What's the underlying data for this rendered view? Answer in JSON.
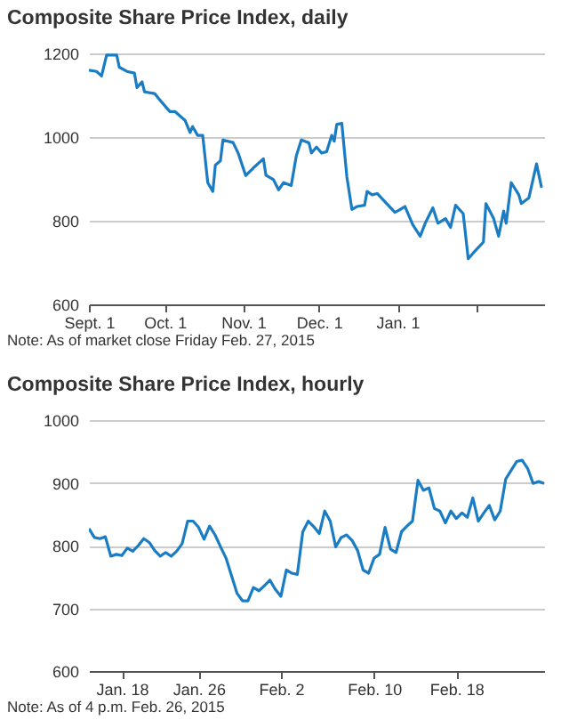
{
  "chart_data": [
    {
      "type": "line",
      "title": "Composite Share Price Index, daily",
      "annotations": [
        "Note: As of market close Friday Feb. 27, 2015"
      ],
      "color": "#1a7dc4",
      "grid": "y",
      "x": [
        "2014-09-01",
        "2014-09-04",
        "2014-09-06",
        "2014-09-08",
        "2014-09-12",
        "2014-09-13",
        "2014-09-16",
        "2014-09-19",
        "2014-09-20",
        "2014-09-22",
        "2014-09-23",
        "2014-09-27",
        "2014-09-29",
        "2014-10-03",
        "2014-10-05",
        "2014-10-09",
        "2014-10-11",
        "2014-10-12",
        "2014-10-14",
        "2014-10-16",
        "2014-10-18",
        "2014-10-20",
        "2014-10-21",
        "2014-10-23",
        "2014-10-24",
        "2014-10-28",
        "2014-10-30",
        "2014-11-02",
        "2014-11-05",
        "2014-11-09",
        "2014-11-10",
        "2014-11-13",
        "2014-11-15",
        "2014-11-17",
        "2014-11-20",
        "2014-11-22",
        "2014-11-24",
        "2014-11-27",
        "2014-11-28",
        "2014-11-30",
        "2014-12-02",
        "2014-12-04",
        "2014-12-06",
        "2014-12-07",
        "2014-12-08",
        "2014-12-10",
        "2014-12-12",
        "2014-12-14",
        "2014-12-16",
        "2014-12-19",
        "2014-12-20",
        "2014-12-22",
        "2014-12-24",
        "2014-12-31",
        "2015-01-01",
        "2015-01-04",
        "2015-01-07",
        "2015-01-10",
        "2015-01-12",
        "2015-01-15",
        "2015-01-17",
        "2015-01-20",
        "2015-01-22",
        "2015-01-24",
        "2015-01-27",
        "2015-01-29",
        "2015-01-31",
        "2015-02-04",
        "2015-02-05",
        "2015-02-08",
        "2015-02-10",
        "2015-02-12",
        "2015-02-13",
        "2015-02-15",
        "2015-02-18",
        "2015-02-19",
        "2015-02-22",
        "2015-02-25",
        "2015-02-27"
      ],
      "values": [
        1160,
        1157,
        1146,
        1196,
        1196,
        1167,
        1157,
        1153,
        1118,
        1132,
        1108,
        1104,
        1089,
        1061,
        1061,
        1040,
        1011,
        1025,
        1004,
        1004,
        891,
        870,
        933,
        943,
        993,
        987,
        962,
        908,
        926,
        948,
        909,
        898,
        874,
        891,
        884,
        955,
        993,
        986,
        962,
        976,
        962,
        965,
        1004,
        990,
        1030,
        1033,
        905,
        827,
        834,
        837,
        870,
        862,
        865,
        820,
        823,
        834,
        791,
        763,
        794,
        831,
        794,
        805,
        784,
        837,
        817,
        709,
        723,
        749,
        841,
        806,
        763,
        823,
        794,
        891,
        862,
        841,
        855,
        936,
        879
      ],
      "xlim": [
        "2014-09-01",
        "2015-02-28"
      ],
      "ylim": [
        600,
        1200
      ],
      "yticks": [
        600,
        800,
        1000,
        1200
      ],
      "xticks": [
        {
          "value": "2014-09-01",
          "label": "Sept. 1"
        },
        {
          "value": "2014-10-01",
          "label": "Oct. 1"
        },
        {
          "value": "2014-11-01",
          "label": "Nov. 1"
        },
        {
          "value": "2014-12-01",
          "label": "Dec. 1"
        },
        {
          "value": "2015-01-01",
          "label": "Jan. 1"
        },
        {
          "value": "2015-02-01",
          "label": null
        }
      ]
    },
    {
      "type": "line",
      "title": "Composite Share Price Index, hourly",
      "annotations": [
        "Note: As of 4 p.m. Feb. 26, 2015"
      ],
      "color": "#1a7dc4",
      "grid": "y",
      "categories": [
        null,
        null,
        null,
        null,
        null,
        null,
        "Jan. 18",
        null,
        null,
        null,
        null,
        null,
        null,
        null,
        null,
        null,
        null,
        null,
        null,
        null,
        "Jan. 26",
        null,
        null,
        null,
        null,
        null,
        null,
        null,
        null,
        null,
        null,
        null,
        null,
        null,
        null,
        "Feb. 2",
        null,
        null,
        null,
        null,
        null,
        null,
        null,
        null,
        null,
        null,
        null,
        null,
        null,
        null,
        null,
        null,
        "Feb. 10",
        null,
        null,
        null,
        null,
        null,
        null,
        null,
        null,
        null,
        null,
        null,
        null,
        null,
        null,
        "Feb. 18",
        null,
        null,
        null,
        null,
        null,
        null,
        null,
        null,
        null,
        null,
        null,
        null,
        null,
        null,
        null,
        null
      ],
      "values": [
        827,
        813,
        811,
        814,
        783,
        786,
        784,
        796,
        791,
        800,
        811,
        805,
        792,
        783,
        789,
        783,
        791,
        803,
        839,
        839,
        829,
        810,
        831,
        817,
        798,
        780,
        752,
        724,
        712,
        712,
        733,
        728,
        736,
        745,
        730,
        719,
        761,
        756,
        754,
        822,
        839,
        830,
        819,
        855,
        839,
        798,
        813,
        817,
        808,
        792,
        761,
        756,
        780,
        786,
        829,
        794,
        789,
        822,
        831,
        839,
        904,
        888,
        892,
        859,
        855,
        836,
        855,
        843,
        852,
        845,
        876,
        839,
        852,
        864,
        841,
        855,
        906,
        920,
        934,
        936,
        923,
        899,
        902,
        899
      ],
      "ylim": [
        600,
        1000
      ],
      "yticks": [
        600,
        700,
        800,
        900,
        1000
      ]
    }
  ]
}
